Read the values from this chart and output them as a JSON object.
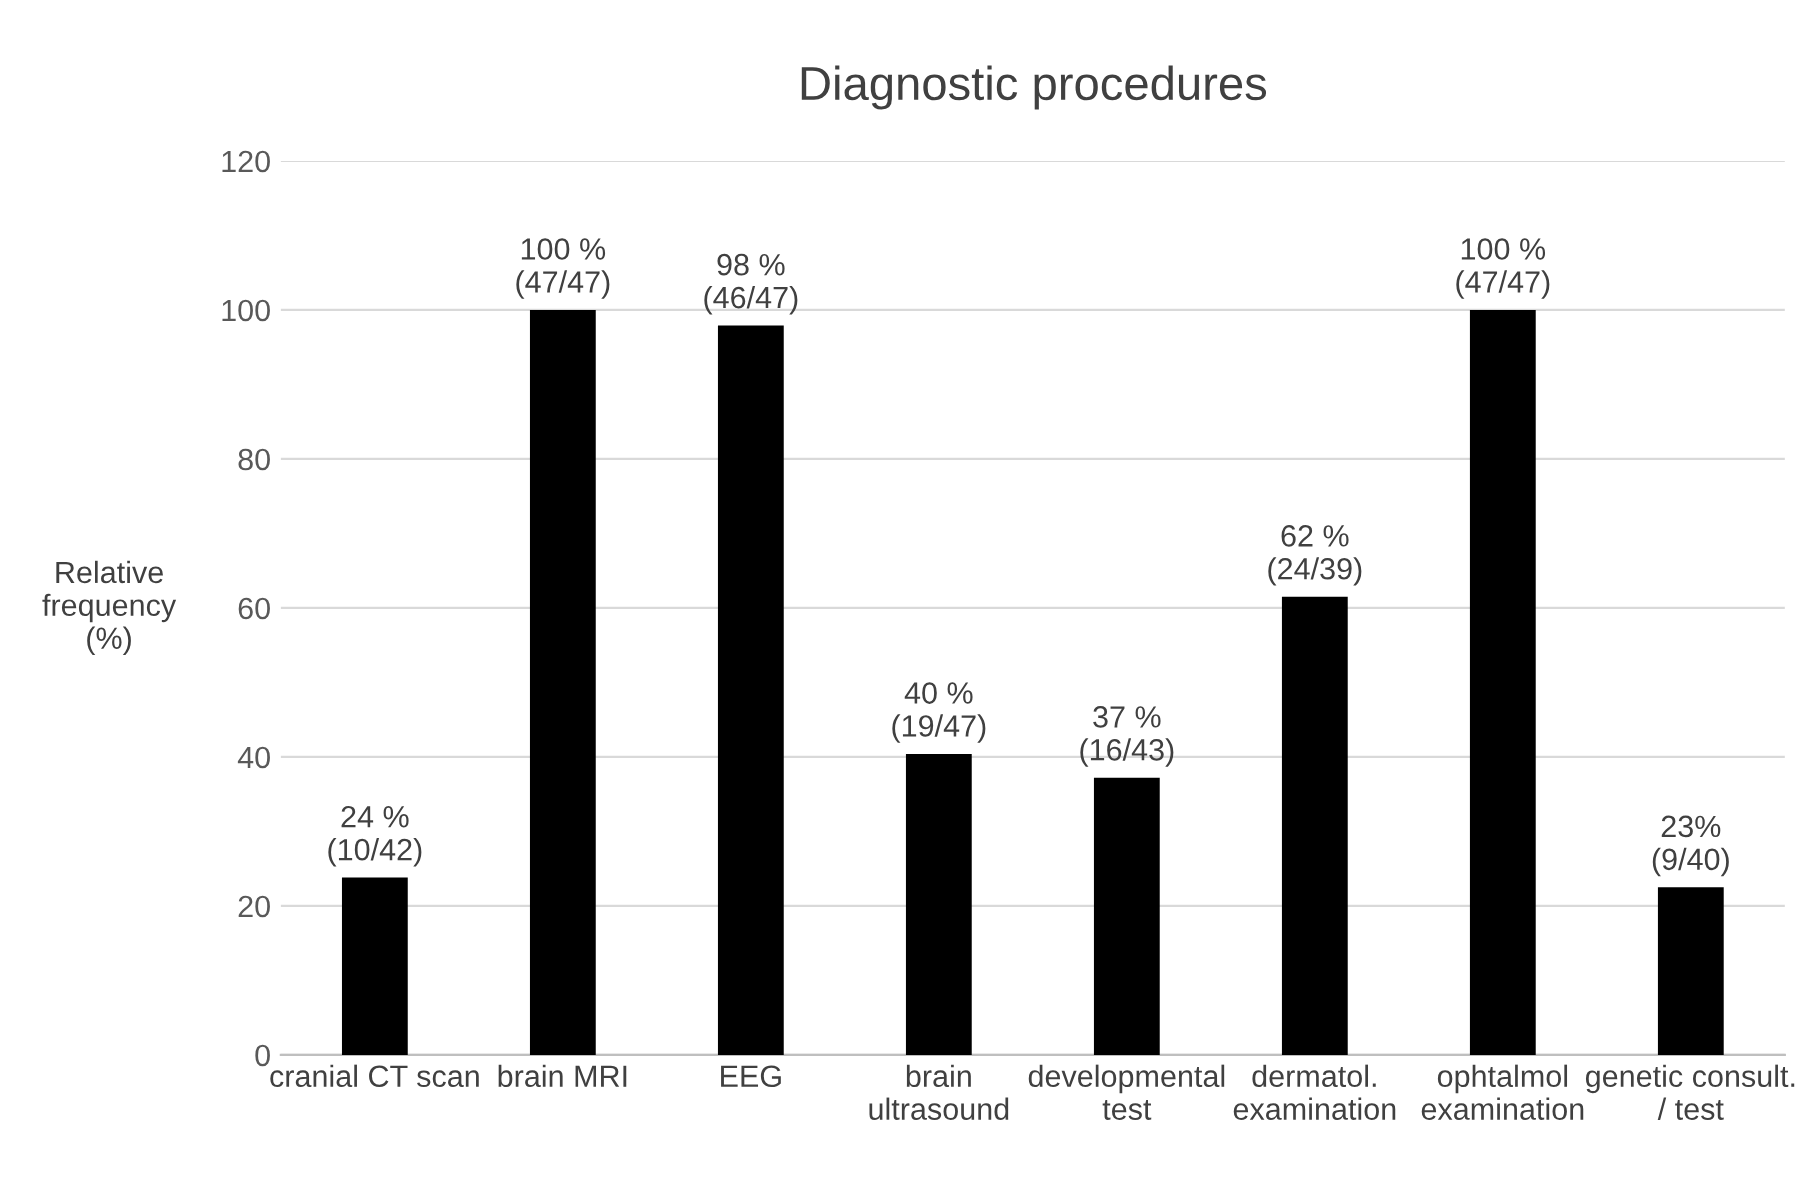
{
  "chart_data": {
    "type": "bar",
    "title": "Diagnostic procedures",
    "ylabel": "Relative\nfrequency\n(%)",
    "categories": [
      "cranial CT scan",
      "brain MRI",
      "EEG",
      "brain\nultrasound",
      "developmental\ntest",
      "dermatol.\nexamination",
      "ophtalmol\nexamination",
      "genetic consult.\n/ test"
    ],
    "values": [
      23.8,
      100,
      97.9,
      40.4,
      37.2,
      61.5,
      100,
      22.5
    ],
    "value_labels": [
      "24 %\n(10/42)",
      "100 %\n(47/47)",
      "98 %\n(46/47)",
      "40 %\n(19/47)",
      "37 %\n(16/43)",
      "62 %\n(24/39)",
      "100 %\n(47/47)",
      "23%\n(9/40)"
    ],
    "color": "#000000",
    "ylim": [
      0,
      120
    ],
    "yticks": [
      0,
      20,
      40,
      60,
      80,
      100,
      120
    ],
    "grid": "y",
    "legend": false
  }
}
